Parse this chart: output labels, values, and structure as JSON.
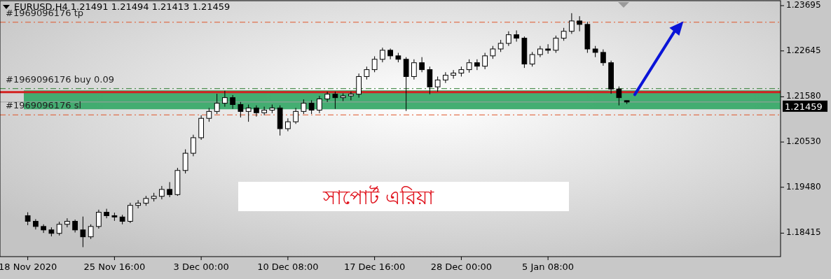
{
  "chart_data": {
    "type": "candlestick",
    "title": "EURUSD,H4  1.21491 1.21494 1.21413 1.21459",
    "categories": [
      "18 Nov 2020",
      null,
      null,
      null,
      null,
      null,
      null,
      null,
      null,
      null,
      null,
      "25 Nov 16:00",
      null,
      null,
      null,
      null,
      null,
      null,
      null,
      null,
      null,
      null,
      "3 Dec 00:00",
      null,
      null,
      null,
      null,
      null,
      null,
      null,
      null,
      null,
      null,
      "10 Dec 08:00",
      null,
      null,
      null,
      null,
      null,
      null,
      null,
      null,
      null,
      null,
      "17 Dec 16:00",
      null,
      null,
      null,
      null,
      null,
      null,
      null,
      null,
      null,
      null,
      "28 Dec 00:00",
      null,
      null,
      null,
      null,
      null,
      null,
      null,
      null,
      null,
      null,
      "5 Jan 08:00",
      null,
      null,
      null,
      null,
      null,
      null,
      null,
      null,
      null,
      null,
      null,
      null,
      null,
      null,
      null,
      null,
      null,
      null,
      null,
      null,
      null,
      null,
      null,
      null,
      null,
      null,
      null,
      null,
      null
    ],
    "ohlc": [
      [
        1.1882,
        1.189,
        1.186,
        1.1869
      ],
      [
        1.1869,
        1.1874,
        1.185,
        1.1857
      ],
      [
        1.1857,
        1.1862,
        1.1842,
        1.1849
      ],
      [
        1.1849,
        1.1855,
        1.1834,
        1.1841
      ],
      [
        1.1841,
        1.1868,
        1.1836,
        1.1862
      ],
      [
        1.1862,
        1.1876,
        1.1855,
        1.1869
      ],
      [
        1.1869,
        1.1873,
        1.1843,
        1.1849
      ],
      [
        1.1849,
        1.188,
        1.1809,
        1.1833
      ],
      [
        1.1833,
        1.1862,
        1.1828,
        1.1857
      ],
      [
        1.1857,
        1.1896,
        1.1852,
        1.189
      ],
      [
        1.189,
        1.1898,
        1.1876,
        1.1882
      ],
      [
        1.1882,
        1.1889,
        1.187,
        1.1879
      ],
      [
        1.1879,
        1.1884,
        1.1862,
        1.1869
      ],
      [
        1.1869,
        1.1912,
        1.1865,
        1.1906
      ],
      [
        1.1906,
        1.1918,
        1.1899,
        1.1911
      ],
      [
        1.1911,
        1.1928,
        1.1905,
        1.1922
      ],
      [
        1.1922,
        1.1935,
        1.1915,
        1.1927
      ],
      [
        1.1927,
        1.1951,
        1.192,
        1.1943
      ],
      [
        1.1943,
        1.196,
        1.1925,
        1.1931
      ],
      [
        1.1931,
        1.1993,
        1.1928,
        1.1987
      ],
      [
        1.1987,
        1.2036,
        1.198,
        1.2027
      ],
      [
        1.2027,
        1.207,
        1.202,
        1.2063
      ],
      [
        1.2063,
        1.2115,
        1.2058,
        1.2108
      ],
      [
        1.2108,
        1.2132,
        1.21,
        1.2124
      ],
      [
        1.2124,
        1.2165,
        1.2118,
        1.2143
      ],
      [
        1.2143,
        1.2172,
        1.2135,
        1.2156
      ],
      [
        1.2156,
        1.2162,
        1.213,
        1.214
      ],
      [
        1.214,
        1.2146,
        1.211,
        1.2124
      ],
      [
        1.2124,
        1.214,
        1.21,
        1.2132
      ],
      [
        1.2132,
        1.2138,
        1.2112,
        1.2121
      ],
      [
        1.2121,
        1.2135,
        1.2115,
        1.2127
      ],
      [
        1.2127,
        1.214,
        1.212,
        1.2132
      ],
      [
        1.2132,
        1.2138,
        1.2068,
        1.2084
      ],
      [
        1.2084,
        1.2108,
        1.2078,
        1.21
      ],
      [
        1.21,
        1.2132,
        1.2095,
        1.2124
      ],
      [
        1.2124,
        1.2152,
        1.2118,
        1.2143
      ],
      [
        1.2143,
        1.215,
        1.2118,
        1.2127
      ],
      [
        1.2127,
        1.216,
        1.212,
        1.2153
      ],
      [
        1.2153,
        1.217,
        1.2146,
        1.2164
      ],
      [
        1.2164,
        1.217,
        1.213,
        1.2156
      ],
      [
        1.2156,
        1.2166,
        1.2148,
        1.216
      ],
      [
        1.216,
        1.217,
        1.215,
        1.2164
      ],
      [
        1.2164,
        1.2212,
        1.2156,
        1.2205
      ],
      [
        1.2205,
        1.2228,
        1.2198,
        1.2221
      ],
      [
        1.2221,
        1.2252,
        1.2215,
        1.2245
      ],
      [
        1.2245,
        1.2272,
        1.2238,
        1.2266
      ],
      [
        1.2266,
        1.227,
        1.2245,
        1.2253
      ],
      [
        1.2253,
        1.226,
        1.2238,
        1.2245
      ],
      [
        1.2245,
        1.225,
        1.2125,
        1.2205
      ],
      [
        1.2205,
        1.2245,
        1.2198,
        1.2237
      ],
      [
        1.2237,
        1.225,
        1.2215,
        1.2221
      ],
      [
        1.2221,
        1.2228,
        1.2164,
        1.2181
      ],
      [
        1.2181,
        1.2205,
        1.217,
        1.2197
      ],
      [
        1.2197,
        1.2215,
        1.219,
        1.2208
      ],
      [
        1.2208,
        1.222,
        1.22,
        1.2213
      ],
      [
        1.2213,
        1.2228,
        1.2205,
        1.2221
      ],
      [
        1.2221,
        1.2245,
        1.2214,
        1.2237
      ],
      [
        1.2237,
        1.2245,
        1.222,
        1.2229
      ],
      [
        1.2229,
        1.226,
        1.2222,
        1.2253
      ],
      [
        1.2253,
        1.2276,
        1.2246,
        1.2269
      ],
      [
        1.2269,
        1.229,
        1.2262,
        1.2282
      ],
      [
        1.2282,
        1.231,
        1.2276,
        1.2302
      ],
      [
        1.2302,
        1.2312,
        1.2286,
        1.2294
      ],
      [
        1.2294,
        1.2298,
        1.2225,
        1.2234
      ],
      [
        1.2234,
        1.2262,
        1.2228,
        1.2256
      ],
      [
        1.2256,
        1.2276,
        1.225,
        1.2269
      ],
      [
        1.2269,
        1.228,
        1.2258,
        1.2266
      ],
      [
        1.2266,
        1.23,
        1.226,
        1.2294
      ],
      [
        1.2294,
        1.2318,
        1.2288,
        1.231
      ],
      [
        1.231,
        1.2352,
        1.2304,
        1.2334
      ],
      [
        1.2334,
        1.2345,
        1.231,
        1.2326
      ],
      [
        1.2326,
        1.2332,
        1.226,
        1.2269
      ],
      [
        1.2269,
        1.2276,
        1.225,
        1.2261
      ],
      [
        1.2261,
        1.2268,
        1.223,
        1.2237
      ],
      [
        1.2237,
        1.2242,
        1.2165,
        1.2176
      ],
      [
        1.2176,
        1.2182,
        1.2138,
        1.2156
      ],
      [
        1.21491,
        1.21494,
        1.21413,
        1.21459
      ],
      null,
      null,
      null,
      null,
      null,
      null,
      null,
      null,
      null,
      null,
      null,
      null,
      null,
      null,
      null,
      null,
      null,
      null,
      null
    ],
    "ylim": [
      1.1787,
      1.2381
    ],
    "yticks": [
      1.18415,
      {
        "value": 1.1948,
        "label": "1.19480"
      },
      {
        "value": 1.2053,
        "label": "1.20530"
      },
      {
        "value": 1.2158,
        "label": "1.21580"
      },
      1.22645,
      1.23695
    ],
    "ref_lines": [
      {
        "axis": "y",
        "value": 1.2331,
        "label": "#1969096176 tp",
        "color": "#e0562a",
        "line_style": "dashed"
      },
      {
        "axis": "y",
        "value": 1.2177,
        "label": "#1969096176 buy 0.09",
        "color": "#2e7d32",
        "line_style": "dashed"
      },
      {
        "axis": "y",
        "value": 1.2116,
        "label": "#1969096176 sl",
        "color": "#e0562a",
        "line_style": "dashed"
      },
      {
        "axis": "y",
        "value": 1.2169,
        "color": "#d42020",
        "line_style": "solid"
      },
      {
        "axis": "y",
        "value": 1.21459,
        "label": "1.21459",
        "color": "#a0a0a0",
        "line_style": "solid"
      }
    ],
    "bands": [
      {
        "axis": "y",
        "from": 1.2129,
        "to": 1.2173,
        "color": "#3aaa6a"
      }
    ],
    "annotations": [
      "সাপোর্ট এরিয়া"
    ]
  }
}
